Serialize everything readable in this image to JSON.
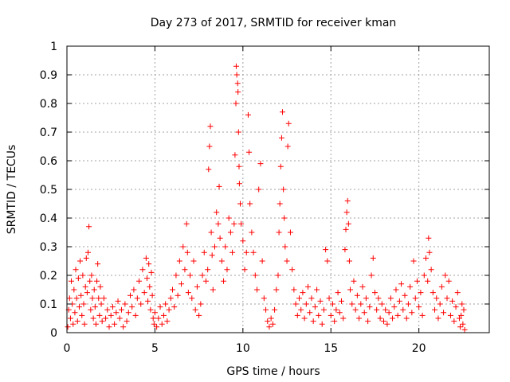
{
  "chart_data": {
    "type": "scatter",
    "title": "Day 273 of 2017, SRMTID for receiver kman",
    "xlabel": "GPS time / hours",
    "ylabel": "SRMTID / TECUs",
    "xlim": [
      0,
      24
    ],
    "ylim": [
      0,
      1
    ],
    "xticks": [
      0,
      5,
      10,
      15,
      20
    ],
    "xtick_labels": [
      "0",
      "5",
      "10",
      "15",
      "20"
    ],
    "yticks": [
      0,
      0.1,
      0.2,
      0.3,
      0.4,
      0.5,
      0.6,
      0.7,
      0.8,
      0.9,
      1
    ],
    "ytick_labels": [
      "0",
      "0.1",
      "0.2",
      "0.3",
      "0.4",
      "0.5",
      "0.6",
      "0.7",
      "0.8",
      "0.9",
      "1"
    ],
    "grid": true,
    "marker": "plus",
    "series": [
      {
        "name": "SRMTID",
        "color": "#ff0000",
        "points": [
          [
            0.05,
            0.02
          ],
          [
            0.1,
            0.08
          ],
          [
            0.15,
            0.12
          ],
          [
            0.2,
            0.05
          ],
          [
            0.25,
            0.18
          ],
          [
            0.3,
            0.1
          ],
          [
            0.35,
            0.03
          ],
          [
            0.4,
            0.15
          ],
          [
            0.45,
            0.07
          ],
          [
            0.5,
            0.22
          ],
          [
            0.55,
            0.12
          ],
          [
            0.6,
            0.04
          ],
          [
            0.65,
            0.19
          ],
          [
            0.7,
            0.09
          ],
          [
            0.75,
            0.25
          ],
          [
            0.8,
            0.13
          ],
          [
            0.85,
            0.06
          ],
          [
            0.9,
            0.2
          ],
          [
            0.95,
            0.1
          ],
          [
            1.0,
            0.03
          ],
          [
            1.05,
            0.16
          ],
          [
            1.1,
            0.26
          ],
          [
            1.15,
            0.14
          ],
          [
            1.2,
            0.28
          ],
          [
            1.25,
            0.37
          ],
          [
            1.3,
            0.18
          ],
          [
            1.35,
            0.08
          ],
          [
            1.4,
            0.2
          ],
          [
            1.45,
            0.12
          ],
          [
            1.5,
            0.05
          ],
          [
            1.55,
            0.15
          ],
          [
            1.6,
            0.09
          ],
          [
            1.65,
            0.03
          ],
          [
            1.7,
            0.18
          ],
          [
            1.75,
            0.24
          ],
          [
            1.8,
            0.12
          ],
          [
            1.85,
            0.06
          ],
          [
            1.9,
            0.16
          ],
          [
            1.95,
            0.1
          ],
          [
            2.0,
            0.04
          ],
          [
            2.1,
            0.12
          ],
          [
            2.2,
            0.05
          ],
          [
            2.3,
            0.08
          ],
          [
            2.4,
            0.02
          ],
          [
            2.5,
            0.06
          ],
          [
            2.6,
            0.09
          ],
          [
            2.7,
            0.03
          ],
          [
            2.8,
            0.07
          ],
          [
            2.9,
            0.11
          ],
          [
            3.0,
            0.05
          ],
          [
            3.1,
            0.08
          ],
          [
            3.2,
            0.02
          ],
          [
            3.3,
            0.1
          ],
          [
            3.4,
            0.04
          ],
          [
            3.5,
            0.07
          ],
          [
            3.6,
            0.13
          ],
          [
            3.7,
            0.09
          ],
          [
            3.8,
            0.15
          ],
          [
            3.9,
            0.06
          ],
          [
            4.0,
            0.12
          ],
          [
            4.1,
            0.18
          ],
          [
            4.2,
            0.1
          ],
          [
            4.3,
            0.22
          ],
          [
            4.4,
            0.14
          ],
          [
            4.5,
            0.26
          ],
          [
            4.55,
            0.19
          ],
          [
            4.6,
            0.11
          ],
          [
            4.65,
            0.24
          ],
          [
            4.7,
            0.16
          ],
          [
            4.75,
            0.08
          ],
          [
            4.8,
            0.21
          ],
          [
            4.85,
            0.13
          ],
          [
            4.9,
            0.05
          ],
          [
            4.95,
            0.03
          ],
          [
            5.0,
            0.07
          ],
          [
            5.1,
            0.02
          ],
          [
            5.2,
            0.05
          ],
          [
            5.3,
            0.09
          ],
          [
            5.4,
            0.03
          ],
          [
            5.5,
            0.06
          ],
          [
            5.6,
            0.1
          ],
          [
            5.7,
            0.04
          ],
          [
            5.8,
            0.08
          ],
          [
            5.9,
            0.12
          ],
          [
            6.0,
            0.15
          ],
          [
            6.1,
            0.09
          ],
          [
            6.2,
            0.2
          ],
          [
            6.3,
            0.13
          ],
          [
            6.4,
            0.25
          ],
          [
            6.5,
            0.17
          ],
          [
            6.6,
            0.3
          ],
          [
            6.7,
            0.22
          ],
          [
            6.8,
            0.38
          ],
          [
            6.85,
            0.28
          ],
          [
            6.9,
            0.14
          ],
          [
            7.0,
            0.2
          ],
          [
            7.1,
            0.12
          ],
          [
            7.2,
            0.25
          ],
          [
            7.3,
            0.08
          ],
          [
            7.4,
            0.16
          ],
          [
            7.5,
            0.06
          ],
          [
            7.6,
            0.1
          ],
          [
            7.7,
            0.2
          ],
          [
            7.8,
            0.28
          ],
          [
            7.9,
            0.18
          ],
          [
            8.0,
            0.22
          ],
          [
            8.05,
            0.57
          ],
          [
            8.1,
            0.65
          ],
          [
            8.15,
            0.72
          ],
          [
            8.2,
            0.35
          ],
          [
            8.25,
            0.27
          ],
          [
            8.3,
            0.15
          ],
          [
            8.4,
            0.3
          ],
          [
            8.5,
            0.42
          ],
          [
            8.6,
            0.38
          ],
          [
            8.65,
            0.51
          ],
          [
            8.7,
            0.33
          ],
          [
            8.8,
            0.25
          ],
          [
            8.9,
            0.18
          ],
          [
            9.0,
            0.3
          ],
          [
            9.1,
            0.22
          ],
          [
            9.2,
            0.4
          ],
          [
            9.3,
            0.35
          ],
          [
            9.4,
            0.28
          ],
          [
            9.5,
            0.38
          ],
          [
            9.55,
            0.62
          ],
          [
            9.6,
            0.8
          ],
          [
            9.62,
            0.93
          ],
          [
            9.65,
            0.9
          ],
          [
            9.7,
            0.87
          ],
          [
            9.72,
            0.84
          ],
          [
            9.75,
            0.7
          ],
          [
            9.78,
            0.58
          ],
          [
            9.8,
            0.52
          ],
          [
            9.85,
            0.45
          ],
          [
            9.9,
            0.38
          ],
          [
            10.0,
            0.32
          ],
          [
            10.1,
            0.22
          ],
          [
            10.2,
            0.28
          ],
          [
            10.3,
            0.76
          ],
          [
            10.35,
            0.63
          ],
          [
            10.4,
            0.45
          ],
          [
            10.5,
            0.35
          ],
          [
            10.6,
            0.28
          ],
          [
            10.7,
            0.2
          ],
          [
            10.8,
            0.15
          ],
          [
            10.9,
            0.5
          ],
          [
            11.0,
            0.59
          ],
          [
            11.1,
            0.25
          ],
          [
            11.2,
            0.12
          ],
          [
            11.3,
            0.08
          ],
          [
            11.4,
            0.04
          ],
          [
            11.5,
            0.02
          ],
          [
            11.6,
            0.05
          ],
          [
            11.7,
            0.03
          ],
          [
            11.8,
            0.08
          ],
          [
            11.9,
            0.15
          ],
          [
            12.0,
            0.2
          ],
          [
            12.05,
            0.35
          ],
          [
            12.1,
            0.45
          ],
          [
            12.15,
            0.58
          ],
          [
            12.2,
            0.68
          ],
          [
            12.25,
            0.77
          ],
          [
            12.3,
            0.5
          ],
          [
            12.35,
            0.4
          ],
          [
            12.4,
            0.3
          ],
          [
            12.5,
            0.25
          ],
          [
            12.55,
            0.65
          ],
          [
            12.6,
            0.73
          ],
          [
            12.7,
            0.35
          ],
          [
            12.8,
            0.22
          ],
          [
            12.9,
            0.15
          ],
          [
            13.0,
            0.1
          ],
          [
            13.1,
            0.06
          ],
          [
            13.2,
            0.12
          ],
          [
            13.3,
            0.08
          ],
          [
            13.4,
            0.14
          ],
          [
            13.5,
            0.05
          ],
          [
            13.6,
            0.1
          ],
          [
            13.7,
            0.16
          ],
          [
            13.8,
            0.07
          ],
          [
            13.9,
            0.12
          ],
          [
            14.0,
            0.04
          ],
          [
            14.1,
            0.09
          ],
          [
            14.2,
            0.15
          ],
          [
            14.3,
            0.06
          ],
          [
            14.4,
            0.11
          ],
          [
            14.5,
            0.03
          ],
          [
            14.6,
            0.08
          ],
          [
            14.7,
            0.29
          ],
          [
            14.8,
            0.25
          ],
          [
            14.9,
            0.12
          ],
          [
            15.0,
            0.06
          ],
          [
            15.1,
            0.1
          ],
          [
            15.2,
            0.04
          ],
          [
            15.3,
            0.08
          ],
          [
            15.4,
            0.14
          ],
          [
            15.5,
            0.07
          ],
          [
            15.6,
            0.11
          ],
          [
            15.7,
            0.05
          ],
          [
            15.8,
            0.29
          ],
          [
            15.85,
            0.36
          ],
          [
            15.9,
            0.42
          ],
          [
            15.95,
            0.46
          ],
          [
            16.0,
            0.38
          ],
          [
            16.05,
            0.25
          ],
          [
            16.1,
            0.15
          ],
          [
            16.2,
            0.1
          ],
          [
            16.3,
            0.18
          ],
          [
            16.4,
            0.08
          ],
          [
            16.5,
            0.13
          ],
          [
            16.6,
            0.05
          ],
          [
            16.7,
            0.1
          ],
          [
            16.8,
            0.16
          ],
          [
            16.9,
            0.07
          ],
          [
            17.0,
            0.12
          ],
          [
            17.1,
            0.04
          ],
          [
            17.2,
            0.09
          ],
          [
            17.3,
            0.2
          ],
          [
            17.4,
            0.26
          ],
          [
            17.5,
            0.14
          ],
          [
            17.6,
            0.08
          ],
          [
            17.7,
            0.12
          ],
          [
            17.8,
            0.05
          ],
          [
            17.9,
            0.1
          ],
          [
            18.0,
            0.04
          ],
          [
            18.1,
            0.08
          ],
          [
            18.2,
            0.03
          ],
          [
            18.3,
            0.07
          ],
          [
            18.4,
            0.12
          ],
          [
            18.5,
            0.05
          ],
          [
            18.6,
            0.09
          ],
          [
            18.7,
            0.15
          ],
          [
            18.8,
            0.06
          ],
          [
            18.9,
            0.11
          ],
          [
            19.0,
            0.17
          ],
          [
            19.1,
            0.08
          ],
          [
            19.2,
            0.13
          ],
          [
            19.3,
            0.05
          ],
          [
            19.4,
            0.1
          ],
          [
            19.5,
            0.16
          ],
          [
            19.6,
            0.07
          ],
          [
            19.7,
            0.25
          ],
          [
            19.8,
            0.12
          ],
          [
            19.9,
            0.18
          ],
          [
            20.0,
            0.09
          ],
          [
            20.1,
            0.14
          ],
          [
            20.2,
            0.06
          ],
          [
            20.3,
            0.2
          ],
          [
            20.4,
            0.26
          ],
          [
            20.5,
            0.18
          ],
          [
            20.55,
            0.33
          ],
          [
            20.6,
            0.28
          ],
          [
            20.7,
            0.22
          ],
          [
            20.8,
            0.14
          ],
          [
            20.9,
            0.08
          ],
          [
            21.0,
            0.12
          ],
          [
            21.1,
            0.05
          ],
          [
            21.2,
            0.1
          ],
          [
            21.3,
            0.16
          ],
          [
            21.4,
            0.07
          ],
          [
            21.5,
            0.2
          ],
          [
            21.6,
            0.12
          ],
          [
            21.7,
            0.18
          ],
          [
            21.8,
            0.06
          ],
          [
            21.9,
            0.11
          ],
          [
            22.0,
            0.04
          ],
          [
            22.1,
            0.09
          ],
          [
            22.2,
            0.14
          ],
          [
            22.3,
            0.05
          ],
          [
            22.35,
            0.02
          ],
          [
            22.4,
            0.06
          ],
          [
            22.45,
            0.1
          ],
          [
            22.5,
            0.03
          ],
          [
            22.55,
            0.08
          ],
          [
            22.6,
            0.01
          ]
        ]
      }
    ]
  }
}
